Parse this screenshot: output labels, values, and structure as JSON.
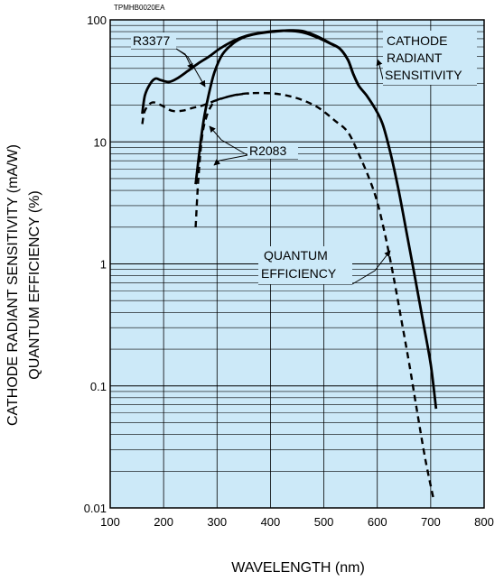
{
  "chart_data": {
    "type": "line",
    "figure_code": "TPMHB0020EA",
    "xlabel": "WAVELENGTH (nm)",
    "ylabel": [
      "CATHODE RADIANT SENSITIVITY (mA/W)",
      "QUANTUM EFFICIENCY (%)"
    ],
    "xlim": [
      100,
      800
    ],
    "ylim": [
      0.01,
      100
    ],
    "yscale": "log",
    "grid": true,
    "background": "#cce9f8",
    "x_ticks": [
      "100",
      "200",
      "300",
      "400",
      "500",
      "600",
      "700",
      "800"
    ],
    "y_ticks": [
      "0.01",
      "0.1",
      "1",
      "10",
      "100"
    ],
    "x_tick_values": [
      100,
      200,
      300,
      400,
      500,
      600,
      700,
      800
    ],
    "y_tick_values": [
      0.01,
      0.1,
      1,
      10,
      100
    ],
    "series": [
      {
        "name": "R3377 CATHODE RADIANT SENSITIVITY",
        "style": "solid",
        "points": [
          [
            160,
            17
          ],
          [
            165,
            24
          ],
          [
            175,
            30
          ],
          [
            185,
            33
          ],
          [
            195,
            32
          ],
          [
            210,
            31
          ],
          [
            225,
            33
          ],
          [
            245,
            38
          ],
          [
            265,
            44
          ],
          [
            285,
            50
          ],
          [
            305,
            58
          ],
          [
            330,
            67
          ],
          [
            355,
            74
          ],
          [
            380,
            78
          ],
          [
            410,
            81
          ],
          [
            440,
            81
          ],
          [
            465,
            78
          ],
          [
            490,
            71
          ],
          [
            515,
            63
          ],
          [
            530,
            58
          ],
          [
            545,
            47
          ],
          [
            555,
            36
          ],
          [
            565,
            29
          ],
          [
            580,
            24
          ],
          [
            595,
            19
          ],
          [
            610,
            14
          ],
          [
            625,
            8
          ],
          [
            640,
            4
          ],
          [
            655,
            1.8
          ],
          [
            670,
            0.8
          ],
          [
            685,
            0.35
          ],
          [
            700,
            0.15
          ],
          [
            710,
            0.065
          ]
        ]
      },
      {
        "name": "R2083 CATHODE RADIANT SENSITIVITY",
        "style": "solid",
        "points": [
          [
            260,
            4.5
          ],
          [
            268,
            9
          ],
          [
            276,
            16
          ],
          [
            285,
            25
          ],
          [
            295,
            37
          ],
          [
            310,
            52
          ],
          [
            330,
            64
          ],
          [
            350,
            72
          ],
          [
            375,
            77
          ],
          [
            405,
            80
          ],
          [
            435,
            82
          ],
          [
            460,
            81
          ],
          [
            485,
            74
          ],
          [
            510,
            65
          ],
          [
            530,
            58
          ],
          [
            545,
            47
          ],
          [
            555,
            36
          ],
          [
            565,
            29
          ]
        ]
      },
      {
        "name": "R3377 QUANTUM EFFICIENCY",
        "style": "dashed",
        "points": [
          [
            160,
            14
          ],
          [
            165,
            18
          ],
          [
            178,
            21
          ],
          [
            195,
            20
          ],
          [
            215,
            18
          ],
          [
            235,
            18
          ],
          [
            255,
            19
          ],
          [
            275,
            20
          ],
          [
            300,
            22
          ],
          [
            330,
            24
          ],
          [
            360,
            25
          ],
          [
            400,
            25
          ],
          [
            430,
            24
          ],
          [
            460,
            22
          ],
          [
            490,
            19
          ],
          [
            520,
            15
          ],
          [
            545,
            12
          ],
          [
            565,
            8
          ],
          [
            585,
            5
          ],
          [
            600,
            3.2
          ],
          [
            615,
            1.7
          ],
          [
            630,
            0.8
          ],
          [
            645,
            0.35
          ],
          [
            660,
            0.15
          ],
          [
            675,
            0.06
          ],
          [
            690,
            0.025
          ],
          [
            705,
            0.012
          ]
        ]
      },
      {
        "name": "R2083 QUANTUM EFFICIENCY",
        "style": "dashed",
        "points": [
          [
            260,
            2
          ],
          [
            265,
            5
          ],
          [
            272,
            11
          ],
          [
            280,
            16
          ],
          [
            290,
            20
          ],
          [
            300,
            22
          ],
          [
            330,
            24
          ],
          [
            360,
            25
          ]
        ]
      }
    ],
    "annotations": [
      {
        "lines": [
          "R3377"
        ]
      },
      {
        "lines": [
          "R2083"
        ]
      },
      {
        "lines": [
          "CATHODE",
          "RADIANT",
          "SENSITIVITY"
        ]
      },
      {
        "lines": [
          "QUANTUM",
          "EFFICIENCY"
        ]
      }
    ]
  }
}
